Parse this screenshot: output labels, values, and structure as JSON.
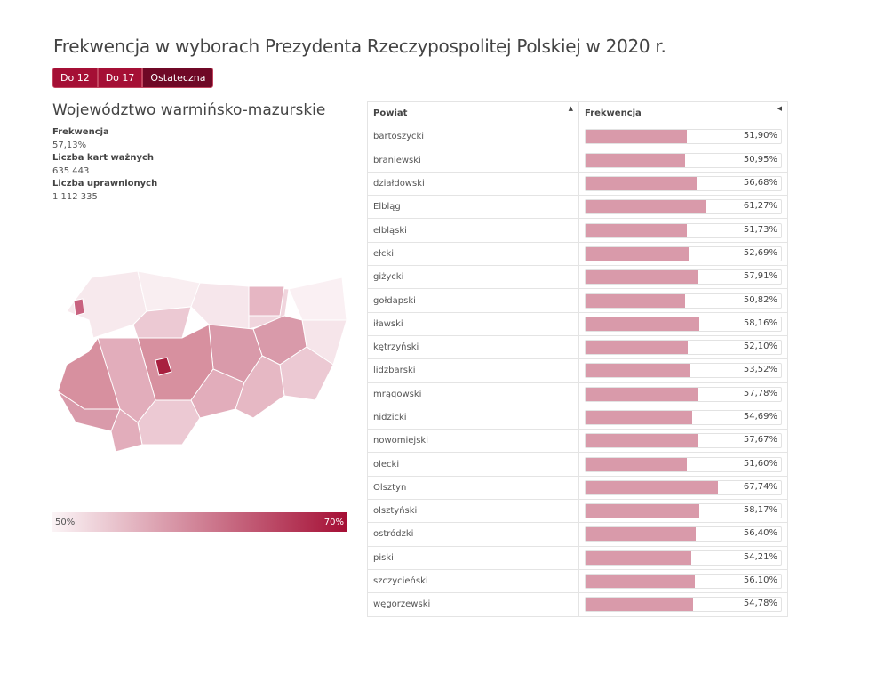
{
  "title": "Frekwencja w wyborach Prezydenta Rzeczypospolitej Polskiej w 2020 r.",
  "buttons": [
    "Do 12",
    "Do 17",
    "Ostateczna"
  ],
  "active_button": "Ostateczna",
  "region": {
    "name": "Województwo warmińsko-mazurskie",
    "labels": {
      "turnout": "Frekwencja",
      "valid": "Liczba kart ważnych",
      "eligible": "Liczba uprawnionych"
    },
    "turnout": "57,13%",
    "valid": "635 443",
    "eligible": "1 112 335"
  },
  "legend": {
    "min": "50%",
    "max": "70%",
    "color_min": "#fbf4f6",
    "color_max": "#a50f35"
  },
  "table": {
    "headers": [
      "Powiat",
      "Frekwencja"
    ],
    "bar_color": "#d99aaa",
    "rows": [
      {
        "name": "bartoszycki",
        "value": 51.9,
        "label": "51,90%"
      },
      {
        "name": "braniewski",
        "value": 50.95,
        "label": "50,95%"
      },
      {
        "name": "działdowski",
        "value": 56.68,
        "label": "56,68%"
      },
      {
        "name": "Elbląg",
        "value": 61.27,
        "label": "61,27%"
      },
      {
        "name": "elbląski",
        "value": 51.73,
        "label": "51,73%"
      },
      {
        "name": "ełcki",
        "value": 52.69,
        "label": "52,69%"
      },
      {
        "name": "giżycki",
        "value": 57.91,
        "label": "57,91%"
      },
      {
        "name": "gołdapski",
        "value": 50.82,
        "label": "50,82%"
      },
      {
        "name": "iławski",
        "value": 58.16,
        "label": "58,16%"
      },
      {
        "name": "kętrzyński",
        "value": 52.1,
        "label": "52,10%"
      },
      {
        "name": "lidzbarski",
        "value": 53.52,
        "label": "53,52%"
      },
      {
        "name": "mrągowski",
        "value": 57.78,
        "label": "57,78%"
      },
      {
        "name": "nidzicki",
        "value": 54.69,
        "label": "54,69%"
      },
      {
        "name": "nowomiejski",
        "value": 57.67,
        "label": "57,67%"
      },
      {
        "name": "olecki",
        "value": 51.6,
        "label": "51,60%"
      },
      {
        "name": "Olsztyn",
        "value": 67.74,
        "label": "67,74%"
      },
      {
        "name": "olsztyński",
        "value": 58.17,
        "label": "58,17%"
      },
      {
        "name": "ostródzki",
        "value": 56.4,
        "label": "56,40%"
      },
      {
        "name": "piski",
        "value": 54.21,
        "label": "54,21%"
      },
      {
        "name": "szczycieński",
        "value": 56.1,
        "label": "56,10%"
      },
      {
        "name": "węgorzewski",
        "value": 54.78,
        "label": "54,78%"
      }
    ]
  }
}
